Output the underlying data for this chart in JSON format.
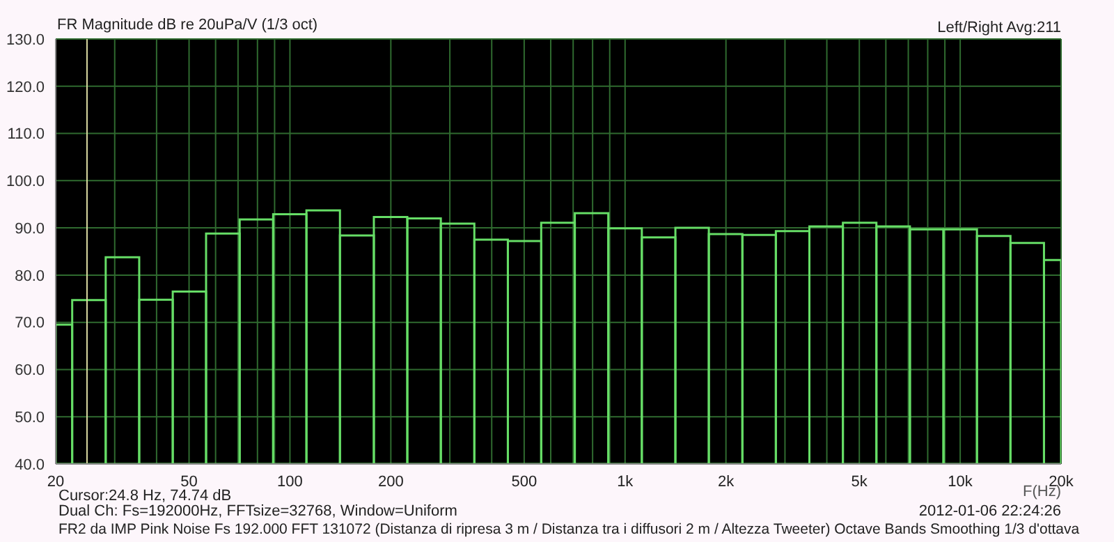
{
  "chart_data": {
    "type": "histogram",
    "title": "FR Magnitude dB re 20uPa/V (1/3 oct)",
    "xlabel": "F(Hz)",
    "annotations": [
      "Left/Right  Avg:211",
      "Cursor:24.8 Hz, 74.74 dB",
      "Dual Ch: Fs=192000Hz, FFTsize=32768, Window=Uniform",
      "2012-01-06  22:24:26",
      "FR2 da IMP Pink Noise Fs 192.000 FFT 131072 (Distanza di ripresa 3 m / Distanza tra i diffusori 2 m / Altezza Tweeter) Octave Bands Smoothing 1/3 d'ottava"
    ],
    "bins": [
      20,
      22.4,
      28.2,
      35.5,
      44.7,
      56.2,
      70.8,
      89.1,
      112,
      141,
      178,
      224,
      282,
      355,
      447,
      562,
      708,
      891,
      1122,
      1413,
      1778,
      2239,
      2818,
      3548,
      4467,
      5623,
      7079,
      8913,
      11220,
      14125,
      17783,
      20000
    ],
    "values": [
      69.5,
      74.7,
      83.8,
      74.8,
      76.5,
      88.8,
      91.8,
      92.9,
      93.7,
      88.4,
      92.3,
      92.0,
      90.9,
      87.5,
      87.2,
      91.1,
      93.1,
      89.9,
      88.0,
      90.0,
      88.7,
      88.5,
      89.3,
      90.3,
      91.1,
      90.3,
      89.7,
      89.7,
      88.3,
      86.8,
      83.2
    ],
    "color": "#66dd66",
    "log": "x",
    "grid": true,
    "xlim": [
      20,
      20000
    ],
    "xticks": [
      20,
      {
        "value": 30,
        "label": null
      },
      {
        "value": 40,
        "label": null
      },
      50,
      {
        "value": 60,
        "label": null
      },
      {
        "value": 70,
        "label": null
      },
      {
        "value": 80,
        "label": null
      },
      {
        "value": 90,
        "label": null
      },
      100,
      200,
      {
        "value": 300,
        "label": null
      },
      {
        "value": 400,
        "label": null
      },
      500,
      {
        "value": 600,
        "label": null
      },
      {
        "value": 700,
        "label": null
      },
      {
        "value": 800,
        "label": null
      },
      {
        "value": 900,
        "label": null
      },
      {
        "value": 1000,
        "label": "1k"
      },
      {
        "value": 2000,
        "label": "2k"
      },
      {
        "value": 3000,
        "label": null
      },
      {
        "value": 4000,
        "label": null
      },
      {
        "value": 5000,
        "label": "5k"
      },
      {
        "value": 6000,
        "label": null
      },
      {
        "value": 7000,
        "label": null
      },
      {
        "value": 8000,
        "label": null
      },
      {
        "value": 9000,
        "label": null
      },
      {
        "value": 10000,
        "label": "10k"
      },
      {
        "value": 20000,
        "label": "20k"
      }
    ],
    "ylim": [
      40,
      130
    ],
    "yticks": [
      {
        "value": 40,
        "label": "40.0"
      },
      {
        "value": 50,
        "label": "50.0"
      },
      {
        "value": 60,
        "label": "60.0"
      },
      {
        "value": 70,
        "label": "70.0"
      },
      {
        "value": 80,
        "label": "80.0"
      },
      {
        "value": 90,
        "label": "90.0"
      },
      {
        "value": 100,
        "label": "100.0"
      },
      {
        "value": 110,
        "label": "110.0"
      },
      {
        "value": 120,
        "label": "120.0"
      },
      {
        "value": 130,
        "label": "130.0"
      }
    ],
    "ref_lines": [
      {
        "axis": "x",
        "value": 24.8,
        "color": "#d8d8a0"
      }
    ]
  }
}
